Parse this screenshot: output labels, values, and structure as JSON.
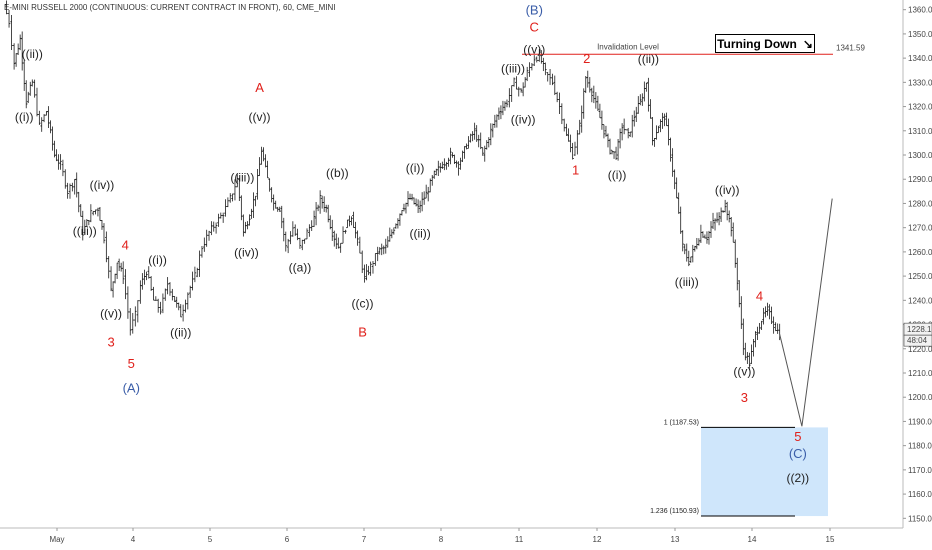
{
  "header": {
    "title": "E-MINI RUSSELL 2000 (CONTINUOUS: CURRENT CONTRACT IN FRONT), 60, CME_MINI"
  },
  "badge": {
    "label": "Turning Down",
    "icon": "trend-down-arrow-icon"
  },
  "chart_data": {
    "type": "bar",
    "x_ticks": [
      "May",
      "4",
      "5",
      "6",
      "7",
      "8",
      "11",
      "12",
      "13",
      "14",
      "15"
    ],
    "y_ticks": [
      1150,
      1160,
      1170,
      1180,
      1190,
      1200,
      1210,
      1220,
      1230,
      1240,
      1250,
      1260,
      1270,
      1280,
      1290,
      1300,
      1310,
      1320,
      1330,
      1340,
      1350,
      1360
    ],
    "ylim": [
      1146,
      1364
    ],
    "invalidation": {
      "label": "Invalidation Level",
      "value": 1341.59,
      "value_label": "1341.59"
    },
    "last_price": {
      "value": 1228.1,
      "label": "1228.1",
      "countdown": "48:04"
    },
    "target_zone": {
      "upper": 1187.53,
      "lower": 1150.93,
      "upper_label": "1 (1187.53)",
      "lower_label": "1.236 (1150.93)"
    },
    "ohlc_path": [
      [
        0.0,
        1362
      ],
      [
        0.5,
        1355
      ],
      [
        1.0,
        1338
      ],
      [
        1.6,
        1348
      ],
      [
        2.2,
        1322
      ],
      [
        2.8,
        1330
      ],
      [
        3.5,
        1312
      ],
      [
        4.2,
        1318
      ],
      [
        5.0,
        1300
      ],
      [
        5.6,
        1296
      ],
      [
        6.3,
        1285
      ],
      [
        7.0,
        1290
      ],
      [
        7.8,
        1268
      ],
      [
        8.6,
        1276
      ],
      [
        9.3,
        1278
      ],
      [
        9.9,
        1266
      ],
      [
        10.6,
        1244
      ],
      [
        11.2,
        1256
      ],
      [
        11.8,
        1250
      ],
      [
        12.5,
        1228
      ],
      [
        13.0,
        1234
      ],
      [
        13.5,
        1246
      ],
      [
        14.1,
        1252
      ],
      [
        14.8,
        1240
      ],
      [
        15.5,
        1236
      ],
      [
        16.2,
        1247
      ],
      [
        16.9,
        1240
      ],
      [
        17.5,
        1234
      ],
      [
        18.2,
        1243
      ],
      [
        18.9,
        1250
      ],
      [
        19.6,
        1262
      ],
      [
        20.3,
        1268
      ],
      [
        21.0,
        1272
      ],
      [
        21.7,
        1276
      ],
      [
        22.4,
        1282
      ],
      [
        23.1,
        1290
      ],
      [
        23.7,
        1268
      ],
      [
        24.3,
        1275
      ],
      [
        24.9,
        1284
      ],
      [
        25.5,
        1302
      ],
      [
        26.1,
        1290
      ],
      [
        26.7,
        1280
      ],
      [
        27.3,
        1278
      ],
      [
        27.9,
        1262
      ],
      [
        28.6,
        1270
      ],
      [
        29.3,
        1262
      ],
      [
        30.0,
        1268
      ],
      [
        30.7,
        1274
      ],
      [
        31.3,
        1282
      ],
      [
        31.9,
        1278
      ],
      [
        32.5,
        1268
      ],
      [
        33.1,
        1262
      ],
      [
        33.8,
        1270
      ],
      [
        34.4,
        1275
      ],
      [
        35.0,
        1264
      ],
      [
        35.7,
        1249
      ],
      [
        36.3,
        1254
      ],
      [
        37.0,
        1260
      ],
      [
        37.8,
        1262
      ],
      [
        38.6,
        1270
      ],
      [
        39.4,
        1278
      ],
      [
        40.2,
        1282
      ],
      [
        41.0,
        1278
      ],
      [
        41.8,
        1284
      ],
      [
        42.6,
        1292
      ],
      [
        43.4,
        1296
      ],
      [
        44.2,
        1300
      ],
      [
        45.0,
        1296
      ],
      [
        45.8,
        1304
      ],
      [
        46.6,
        1310
      ],
      [
        47.4,
        1300
      ],
      [
        48.2,
        1310
      ],
      [
        49.0,
        1318
      ],
      [
        49.8,
        1322
      ],
      [
        50.5,
        1330
      ],
      [
        51.2,
        1326
      ],
      [
        51.8,
        1334
      ],
      [
        52.5,
        1340
      ],
      [
        53.0,
        1341
      ],
      [
        53.6,
        1334
      ],
      [
        54.3,
        1330
      ],
      [
        55.0,
        1320
      ],
      [
        55.7,
        1308
      ],
      [
        56.3,
        1300
      ],
      [
        57.0,
        1312
      ],
      [
        57.6,
        1332
      ],
      [
        58.2,
        1326
      ],
      [
        58.8,
        1318
      ],
      [
        59.4,
        1310
      ],
      [
        60.0,
        1302
      ],
      [
        60.6,
        1300
      ],
      [
        61.2,
        1312
      ],
      [
        61.8,
        1308
      ],
      [
        62.4,
        1316
      ],
      [
        63.0,
        1322
      ],
      [
        63.6,
        1330
      ],
      [
        64.2,
        1306
      ],
      [
        64.8,
        1312
      ],
      [
        65.4,
        1316
      ],
      [
        66.0,
        1300
      ],
      [
        66.6,
        1282
      ],
      [
        67.2,
        1262
      ],
      [
        67.8,
        1256
      ],
      [
        68.4,
        1262
      ],
      [
        69.0,
        1268
      ],
      [
        69.6,
        1266
      ],
      [
        70.2,
        1272
      ],
      [
        70.8,
        1274
      ],
      [
        71.4,
        1280
      ],
      [
        72.0,
        1270
      ],
      [
        72.6,
        1248
      ],
      [
        73.2,
        1220
      ],
      [
        73.8,
        1214
      ],
      [
        74.4,
        1226
      ],
      [
        75.0,
        1232
      ],
      [
        75.6,
        1236
      ],
      [
        76.2,
        1230
      ],
      [
        76.8,
        1226
      ]
    ],
    "projection": [
      [
        76.8,
        1226
      ],
      [
        79.0,
        1188
      ],
      [
        82.0,
        1282
      ]
    ],
    "annotations": [
      {
        "text": "((ii))",
        "x": 2.8,
        "y": 1340,
        "c": "black"
      },
      {
        "text": "((i))",
        "x": 2.0,
        "y": 1314,
        "c": "black"
      },
      {
        "text": "((iv))",
        "x": 9.7,
        "y": 1286,
        "c": "black"
      },
      {
        "text": "((iii))",
        "x": 8.0,
        "y": 1267,
        "c": "black"
      },
      {
        "text": "4",
        "x": 12.0,
        "y": 1261,
        "c": "red"
      },
      {
        "text": "((v))",
        "x": 10.6,
        "y": 1233,
        "c": "black"
      },
      {
        "text": "3",
        "x": 10.6,
        "y": 1221,
        "c": "red"
      },
      {
        "text": "5",
        "x": 12.6,
        "y": 1212,
        "c": "red"
      },
      {
        "text": "(A)",
        "x": 12.6,
        "y": 1202,
        "c": "blue"
      },
      {
        "text": "((i))",
        "x": 15.2,
        "y": 1255,
        "c": "black"
      },
      {
        "text": "((ii))",
        "x": 17.5,
        "y": 1225,
        "c": "black"
      },
      {
        "text": "A",
        "x": 25.3,
        "y": 1326,
        "c": "red"
      },
      {
        "text": "((v))",
        "x": 25.3,
        "y": 1314,
        "c": "black"
      },
      {
        "text": "((iii))",
        "x": 23.6,
        "y": 1289,
        "c": "black"
      },
      {
        "text": "((iv))",
        "x": 24.0,
        "y": 1258,
        "c": "black"
      },
      {
        "text": "((a))",
        "x": 29.3,
        "y": 1252,
        "c": "black"
      },
      {
        "text": "((b))",
        "x": 33.0,
        "y": 1291,
        "c": "black"
      },
      {
        "text": "((c))",
        "x": 35.5,
        "y": 1237,
        "c": "black"
      },
      {
        "text": "B",
        "x": 35.5,
        "y": 1225,
        "c": "red"
      },
      {
        "text": "((i))",
        "x": 40.7,
        "y": 1293,
        "c": "black"
      },
      {
        "text": "((ii))",
        "x": 41.2,
        "y": 1266,
        "c": "black"
      },
      {
        "text": "(B)",
        "x": 52.5,
        "y": 1358,
        "c": "blue"
      },
      {
        "text": "C",
        "x": 52.5,
        "y": 1351,
        "c": "red"
      },
      {
        "text": "((v))",
        "x": 52.5,
        "y": 1342,
        "c": "black"
      },
      {
        "text": "((iii))",
        "x": 50.4,
        "y": 1334,
        "c": "black"
      },
      {
        "text": "((iv))",
        "x": 51.4,
        "y": 1313,
        "c": "black"
      },
      {
        "text": "2",
        "x": 57.7,
        "y": 1338,
        "c": "red"
      },
      {
        "text": "1",
        "x": 56.6,
        "y": 1292,
        "c": "red"
      },
      {
        "text": "((ii))",
        "x": 63.8,
        "y": 1338,
        "c": "black"
      },
      {
        "text": "((i))",
        "x": 60.7,
        "y": 1290,
        "c": "black"
      },
      {
        "text": "((iv))",
        "x": 71.6,
        "y": 1284,
        "c": "black"
      },
      {
        "text": "((iii))",
        "x": 67.6,
        "y": 1246,
        "c": "black"
      },
      {
        "text": "4",
        "x": 74.8,
        "y": 1240,
        "c": "red"
      },
      {
        "text": "((v))",
        "x": 73.3,
        "y": 1209,
        "c": "black"
      },
      {
        "text": "3",
        "x": 73.3,
        "y": 1198,
        "c": "red"
      },
      {
        "text": "5",
        "x": 78.6,
        "y": 1182,
        "c": "red"
      },
      {
        "text": "(C)",
        "x": 78.6,
        "y": 1175,
        "c": "blue"
      },
      {
        "text": "((2))",
        "x": 78.6,
        "y": 1165,
        "c": "black"
      }
    ]
  }
}
